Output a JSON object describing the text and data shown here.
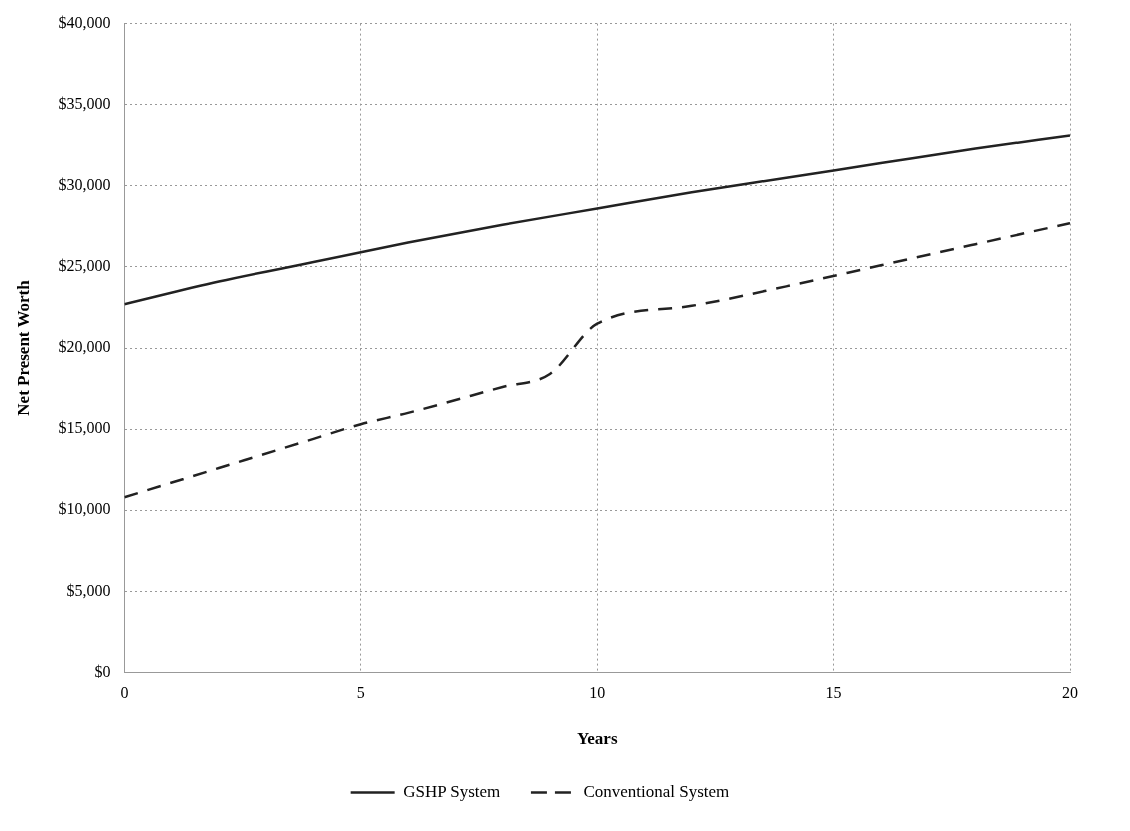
{
  "chart_data": {
    "type": "line",
    "xlabel": "Years",
    "ylabel": "Net Present Worth",
    "xlim": [
      0,
      20
    ],
    "xticks": [
      0,
      5,
      10,
      15,
      20
    ],
    "ylim": [
      0,
      40000
    ],
    "yticks": [
      {
        "value": 0,
        "label": "$0"
      },
      {
        "value": 5000,
        "label": "$5,000"
      },
      {
        "value": 10000,
        "label": "$10,000"
      },
      {
        "value": 15000,
        "label": "$15,000"
      },
      {
        "value": 20000,
        "label": "$20,000"
      },
      {
        "value": 25000,
        "label": "$25,000"
      },
      {
        "value": 30000,
        "label": "$30,000"
      },
      {
        "value": 35000,
        "label": "$35,000"
      },
      {
        "value": 40000,
        "label": "$40,000"
      }
    ],
    "grid": true,
    "legend": "bottom",
    "marker": "none",
    "series": [
      {
        "name": "GSHP System",
        "color": "#222222",
        "line_style": "solid",
        "x": [
          0,
          2,
          4,
          5,
          6,
          8,
          10,
          12,
          14,
          16,
          18,
          20
        ],
        "values": [
          22700,
          24100,
          25300,
          25900,
          26500,
          27600,
          28600,
          29600,
          30500,
          31400,
          32300,
          33100
        ]
      },
      {
        "name": "Conventional System",
        "color": "#222222",
        "line_style": "dashed",
        "x": [
          0,
          2,
          4,
          5,
          6,
          8,
          9,
          10,
          12,
          14,
          16,
          18,
          20
        ],
        "values": [
          10800,
          12600,
          14400,
          15300,
          16000,
          17600,
          18400,
          21500,
          22600,
          23800,
          25100,
          26400,
          27700
        ]
      }
    ]
  }
}
